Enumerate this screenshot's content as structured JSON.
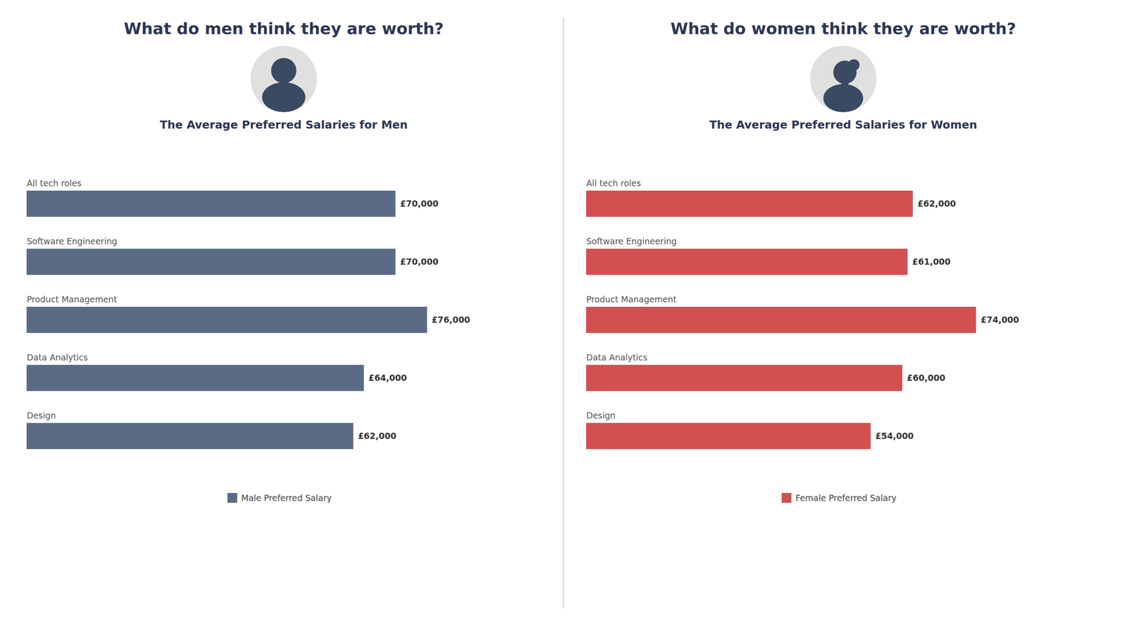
{
  "chart_data": [
    {
      "type": "bar",
      "orientation": "horizontal",
      "title": "What do men think they are worth?",
      "subtitle": "The Average Preferred Salaries for Men",
      "categories": [
        "All tech roles",
        "Software Engineering",
        "Product Management",
        "Data Analytics",
        "Design"
      ],
      "series": [
        {
          "name": "Male Preferred Salary",
          "color": "#5c6b85",
          "values": [
            70000,
            70000,
            76000,
            64000,
            62000
          ],
          "value_labels": [
            "£70,000",
            "£70,000",
            "£76,000",
            "£64,000",
            "£62,000"
          ]
        }
      ],
      "xlim": [
        0,
        97600
      ],
      "data_labels": true,
      "legend": "bottom",
      "grid": false,
      "tick_labels": "y"
    },
    {
      "type": "bar",
      "orientation": "horizontal",
      "title": "What do women think they are worth?",
      "subtitle": "The Average Preferred Salaries for Women",
      "categories": [
        "All tech roles",
        "Software Engineering",
        "Product Management",
        "Data Analytics",
        "Design"
      ],
      "series": [
        {
          "name": "Female Preferred Salary",
          "color": "#d44f4f",
          "values": [
            62000,
            61000,
            74000,
            60000,
            54000
          ],
          "value_labels": [
            "£62,000",
            "£61,000",
            "£74,000",
            "£60,000",
            "£54,000"
          ]
        }
      ],
      "xlim": [
        0,
        97600
      ],
      "data_labels": true,
      "legend": "bottom",
      "grid": false,
      "tick_labels": "y"
    }
  ]
}
